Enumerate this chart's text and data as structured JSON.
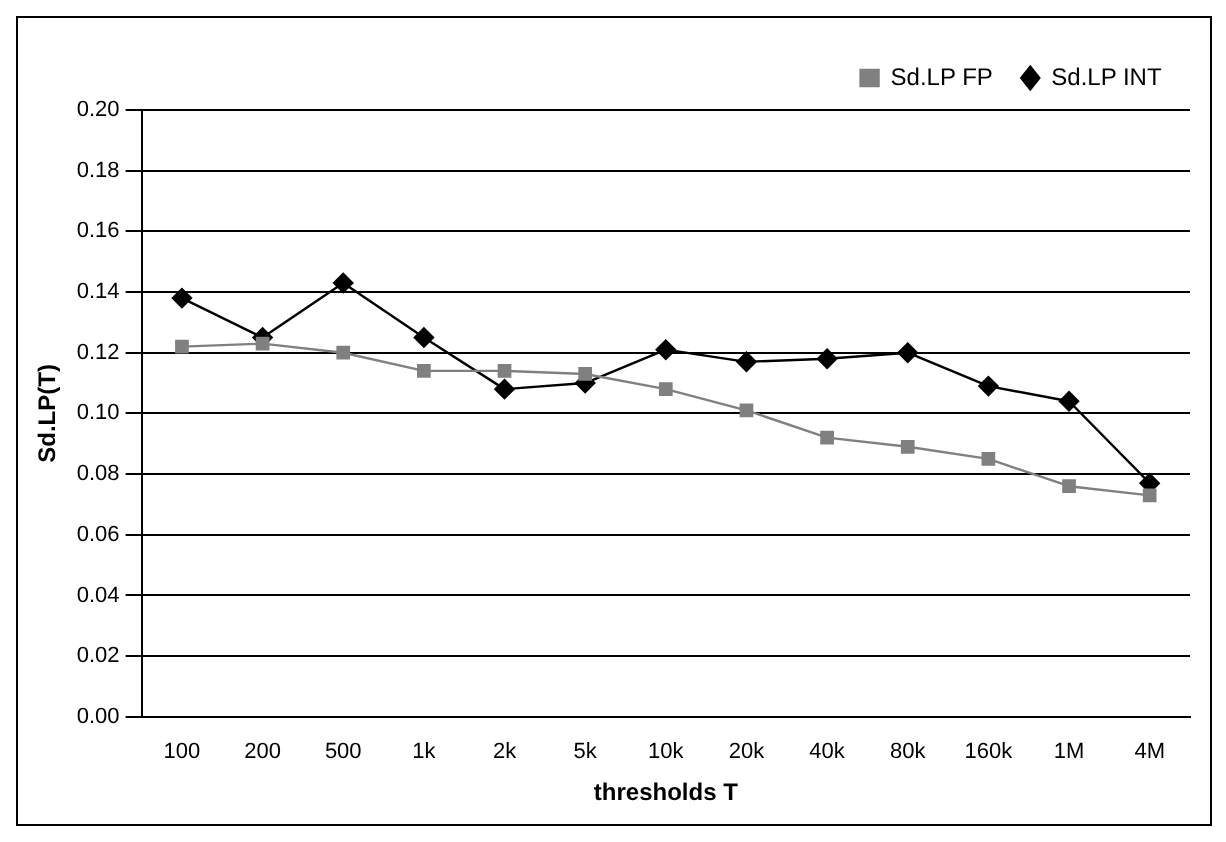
{
  "chart_data": {
    "type": "line",
    "xlabel": "thresholds T",
    "ylabel": "Sd.LP(T)",
    "categories": [
      "100",
      "200",
      "500",
      "1k",
      "2k",
      "5k",
      "10k",
      "20k",
      "40k",
      "80k",
      "160k",
      "1M",
      "4M"
    ],
    "series": [
      {
        "name": "Sd.LP INT",
        "color": "#000000",
        "marker": "diamond",
        "values": [
          0.138,
          0.125,
          0.143,
          0.125,
          0.108,
          0.11,
          0.121,
          0.117,
          0.118,
          0.12,
          0.109,
          0.104,
          0.077
        ]
      },
      {
        "name": "Sd.LP FP",
        "color": "#808080",
        "marker": "square",
        "values": [
          0.122,
          0.123,
          0.12,
          0.114,
          0.114,
          0.113,
          0.108,
          0.101,
          0.092,
          0.089,
          0.085,
          0.076,
          0.073
        ]
      }
    ],
    "ylim": [
      0,
      0.2
    ],
    "yticks": [
      {
        "value": 0,
        "label": "0.00"
      },
      {
        "value": 0.02,
        "label": "0.02"
      },
      {
        "value": 0.04,
        "label": "0.04"
      },
      {
        "value": 0.06,
        "label": "0.06"
      },
      {
        "value": 0.08,
        "label": "0.08"
      },
      {
        "value": 0.1,
        "label": "0.10"
      },
      {
        "value": 0.12,
        "label": "0.12"
      },
      {
        "value": 0.14,
        "label": "0.14"
      },
      {
        "value": 0.16,
        "label": "0.16"
      },
      {
        "value": 0.18,
        "label": "0.18"
      },
      {
        "value": 0.2,
        "label": "0.20"
      }
    ],
    "grid": "y",
    "legend": "top right",
    "line_style": "solid"
  }
}
